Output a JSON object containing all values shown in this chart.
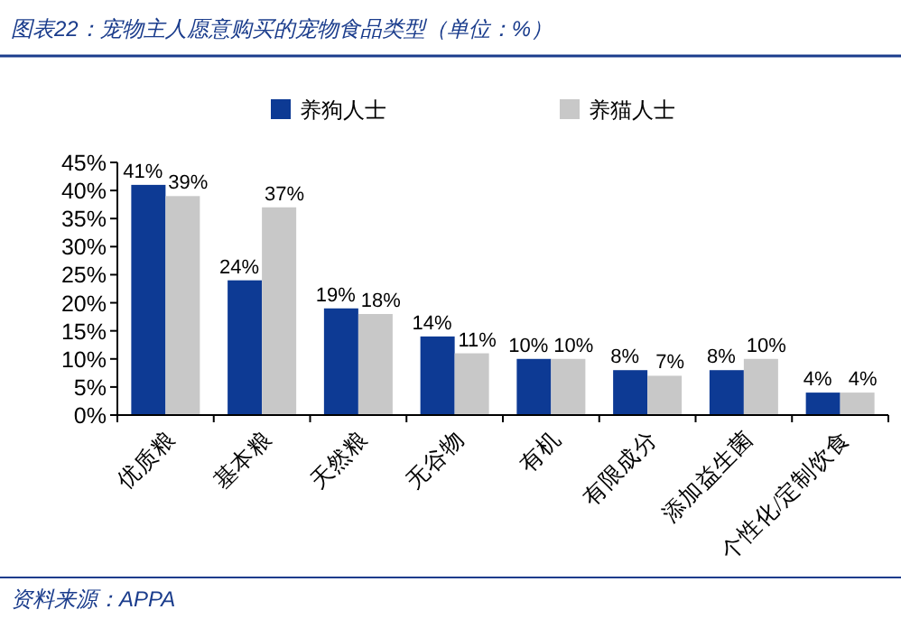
{
  "chart_data": {
    "type": "bar",
    "title": "图表22：宠物主人愿意购买的宠物食品类型（单位：%）",
    "categories": [
      "优质粮",
      "基本粮",
      "天然粮",
      "无谷物",
      "有机",
      "有限成分",
      "添加益生菌",
      "个性化/定制饮食"
    ],
    "series": [
      {
        "name": "养狗人士",
        "color": "#0d3a94",
        "values": [
          41,
          24,
          19,
          14,
          10,
          8,
          8,
          4
        ],
        "value_labels": [
          "41%",
          "24%",
          "19%",
          "14%",
          "10%",
          "8%",
          "8%",
          "4%"
        ]
      },
      {
        "name": "养猫人士",
        "color": "#c8c8c8",
        "values": [
          39,
          37,
          18,
          11,
          10,
          7,
          10,
          4
        ],
        "value_labels": [
          "39%",
          "37%",
          "18%",
          "11%",
          "10%",
          "7%",
          "10%",
          "4%"
        ]
      }
    ],
    "ylim": [
      0,
      45
    ],
    "yticks": [
      {
        "value": 0,
        "label": "0%"
      },
      {
        "value": 5,
        "label": "5%"
      },
      {
        "value": 10,
        "label": "10%"
      },
      {
        "value": 15,
        "label": "15%"
      },
      {
        "value": 20,
        "label": "20%"
      },
      {
        "value": 25,
        "label": "25%"
      },
      {
        "value": 30,
        "label": "30%"
      },
      {
        "value": 35,
        "label": "35%"
      },
      {
        "value": 40,
        "label": "40%"
      },
      {
        "value": 45,
        "label": "45%"
      }
    ],
    "grid": false,
    "legend": "top",
    "annotations": [
      "资料来源：APPA"
    ]
  }
}
